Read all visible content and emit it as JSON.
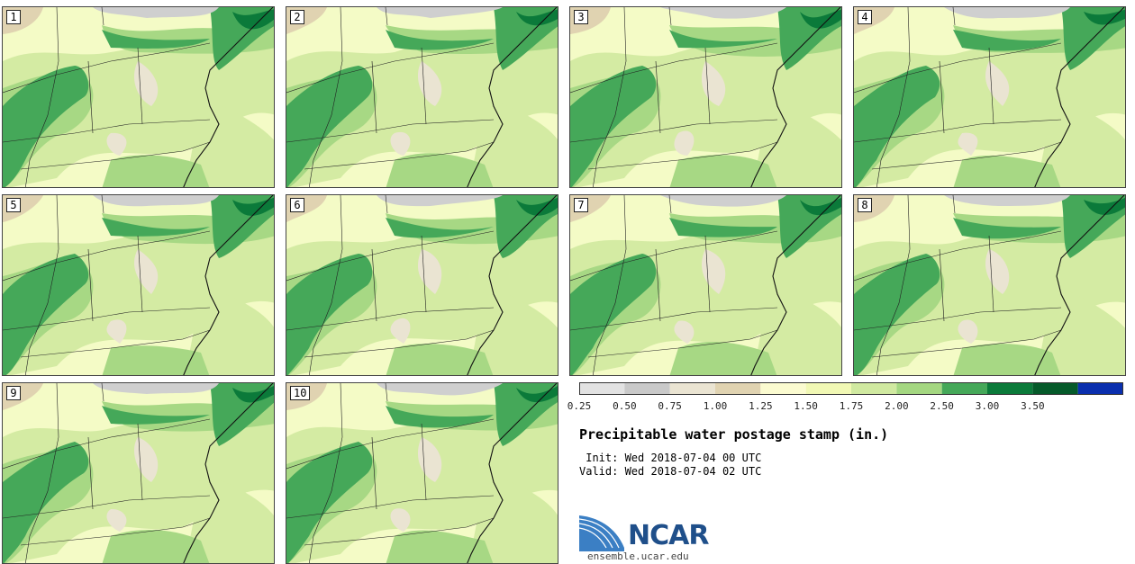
{
  "stamps": [
    {
      "label": "1"
    },
    {
      "label": "2"
    },
    {
      "label": "3"
    },
    {
      "label": "4"
    },
    {
      "label": "5"
    },
    {
      "label": "6"
    },
    {
      "label": "7"
    },
    {
      "label": "8"
    },
    {
      "label": "9"
    },
    {
      "label": "10"
    }
  ],
  "colorbar": {
    "ticks": [
      "0.25",
      "0.50",
      "0.75",
      "1.00",
      "1.25",
      "1.50",
      "1.75",
      "2.00",
      "2.50",
      "3.00",
      "3.50"
    ],
    "colors": [
      "#e2e2e2",
      "#c9c9c9",
      "#eae4d2",
      "#e0d3b1",
      "#fbfbd0",
      "#f1f8b4",
      "#d0e9a0",
      "#a4d781",
      "#45a859",
      "#0b7a3a",
      "#055a2a",
      "#0a2fae"
    ]
  },
  "title": "Precipitable water postage stamp (in.)",
  "init": " Init: Wed 2018-07-04 00 UTC",
  "valid": "Valid: Wed 2018-07-04 02 UTC",
  "logo": {
    "text": "NCAR",
    "url": "ensemble.ucar.edu"
  }
}
